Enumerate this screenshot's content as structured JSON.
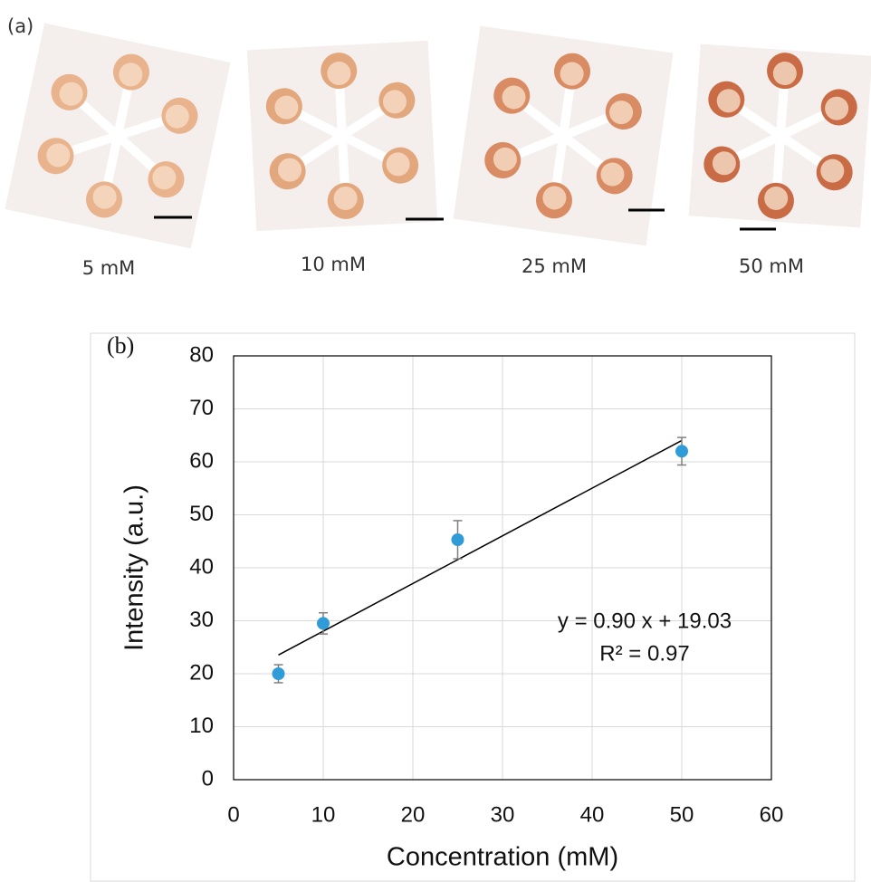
{
  "figure": {
    "panel_a_label": "(a)",
    "captions": [
      "5 mM",
      "10 mM",
      "25 mM",
      "50 mM"
    ]
  },
  "chart_data": {
    "type": "scatter",
    "panel_label": "(b)",
    "x_label": "Concentration (mM)",
    "y_label": "Intensity (a.u.)",
    "series": [
      {
        "x": [
          5,
          10,
          25,
          50
        ],
        "values": [
          20,
          29.5,
          45.3,
          62
        ],
        "errors": [
          1.7,
          2,
          3.6,
          2.6
        ],
        "color": "#2f9bd7"
      }
    ],
    "trendline": {
      "slope": 0.9,
      "intercept": 19.03,
      "label": "y = 0.90 x + 19.03",
      "r2_label": "R² = 0.97"
    },
    "xlim": [
      0,
      60
    ],
    "xticks": [
      0,
      10,
      20,
      30,
      40,
      50,
      60
    ],
    "ylim": [
      0,
      80
    ],
    "yticks": [
      0,
      10,
      20,
      30,
      40,
      50,
      60,
      70,
      80
    ],
    "grid": true
  }
}
